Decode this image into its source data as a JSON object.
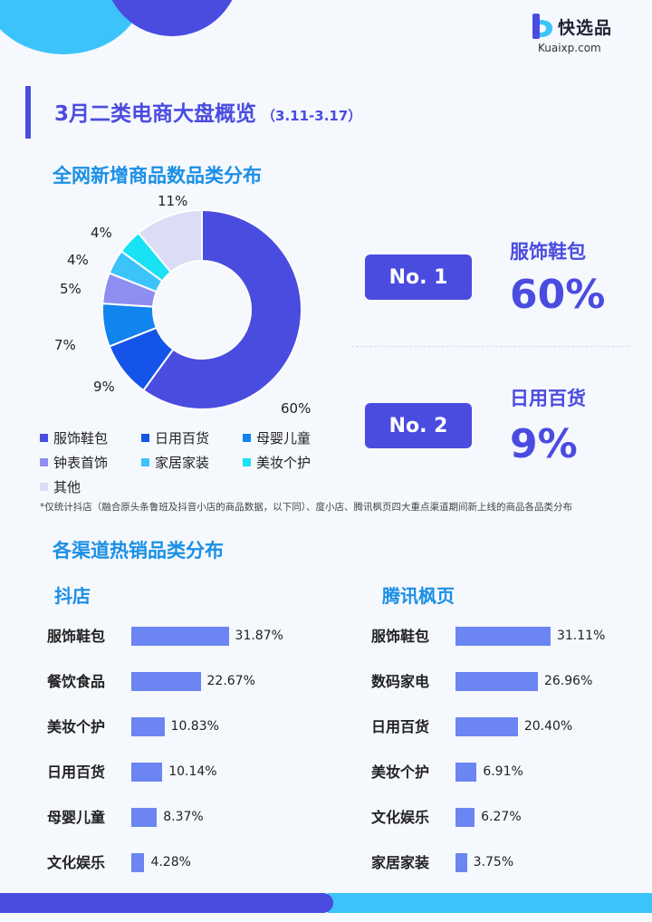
{
  "brand": {
    "name": "快选品",
    "domain": "Kuaixp.com"
  },
  "main_title": "3月二类电商大盘概览",
  "date_range": "（3.11-3.17）",
  "colors": {
    "accent": "#4a4ce0",
    "section_title": "#1a8fe6",
    "bar": "#6b85f2",
    "cyan": "#3cc4fa"
  },
  "donut_section": {
    "title": "全网新增商品数品类分布"
  },
  "rankings": [
    {
      "rank_label": "No. 1",
      "category": "服饰鞋包",
      "percent": "60%"
    },
    {
      "rank_label": "No. 2",
      "category": "日用百货",
      "percent": "9%"
    }
  ],
  "footnote": "*仅统计抖店（融合原头条鲁班及抖音小店的商品数据，以下同）、度小店、腾讯枫页四大重点渠道期间新上线的商品各品类分布",
  "channels_section": {
    "title": "各渠道热销品类分布"
  },
  "chart_data": [
    {
      "type": "pie",
      "title": "全网新增商品数品类分布",
      "categories": [
        "服饰鞋包",
        "日用百货",
        "母婴儿童",
        "钟表首饰",
        "家居家装",
        "美妆个护",
        "其他"
      ],
      "values": [
        60,
        9,
        7,
        5,
        4,
        4,
        11
      ],
      "value_labels": [
        "60%",
        "9%",
        "7%",
        "5%",
        "4%",
        "4%",
        "11%"
      ],
      "colors": [
        "#4a4ce0",
        "#1454e8",
        "#1184ee",
        "#8e8ef0",
        "#3cc4fa",
        "#18e2f4",
        "#dcdcf6"
      ],
      "donut": true,
      "legend_position": "bottom"
    },
    {
      "type": "bar",
      "title": "抖店",
      "categories": [
        "服饰鞋包",
        "餐饮食品",
        "美妆个护",
        "日用百货",
        "母婴儿童",
        "文化娱乐"
      ],
      "values": [
        31.87,
        22.67,
        10.83,
        10.14,
        8.37,
        4.28
      ],
      "value_labels": [
        "31.87%",
        "22.67%",
        "10.83%",
        "10.14%",
        "8.37%",
        "4.28%"
      ],
      "orientation": "horizontal"
    },
    {
      "type": "bar",
      "title": "腾讯枫页",
      "categories": [
        "服饰鞋包",
        "数码家电",
        "日用百货",
        "美妆个护",
        "文化娱乐",
        "家居家装"
      ],
      "values": [
        31.11,
        26.96,
        20.4,
        6.91,
        6.27,
        3.75
      ],
      "value_labels": [
        "31.11%",
        "26.96%",
        "20.40%",
        "6.91%",
        "6.27%",
        "3.75%"
      ],
      "orientation": "horizontal"
    }
  ]
}
